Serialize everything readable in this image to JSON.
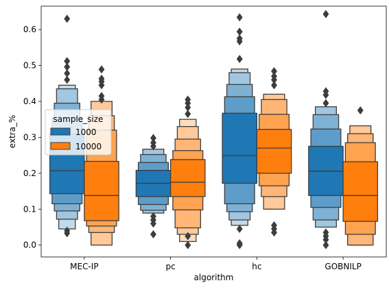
{
  "chart_data": {
    "type": "boxenplot",
    "xlabel": "algorithm",
    "ylabel": "extra_%",
    "categories": [
      "MEC-IP",
      "pc",
      "hc",
      "GOBNILP"
    ],
    "ylim": [
      -0.033,
      0.665
    ],
    "yticks": [
      0.0,
      0.1,
      0.2,
      0.3,
      0.4,
      0.5,
      0.6
    ],
    "ytick_labels": [
      "0.0",
      "0.1",
      "0.2",
      "0.3",
      "0.4",
      "0.5",
      "0.6"
    ],
    "grid": false,
    "legend": {
      "title": "sample_size",
      "placement": "center-left"
    },
    "series": [
      {
        "name": "1000",
        "color": "#1f77b4",
        "groups": [
          {
            "category": "MEC-IP",
            "median": 0.207,
            "boxes": [
              [
                0.143,
                0.31
              ],
              [
                0.115,
                0.355
              ],
              [
                0.095,
                0.395
              ],
              [
                0.072,
                0.435
              ],
              [
                0.045,
                0.445
              ]
            ],
            "outliers": [
              0.04,
              0.033,
              0.46,
              0.478,
              0.496,
              0.512,
              0.63
            ]
          },
          {
            "category": "pc",
            "median": 0.172,
            "boxes": [
              [
                0.135,
                0.208
              ],
              [
                0.113,
                0.23
              ],
              [
                0.097,
                0.252
              ],
              [
                0.089,
                0.267
              ]
            ],
            "outliers": [
              0.08,
              0.07,
              0.06,
              0.03,
              0.275,
              0.285,
              0.298
            ]
          },
          {
            "category": "hc",
            "median": 0.249,
            "boxes": [
              [
                0.172,
                0.367
              ],
              [
                0.115,
                0.413
              ],
              [
                0.093,
                0.447
              ],
              [
                0.07,
                0.48
              ],
              [
                0.055,
                0.49
              ]
            ],
            "outliers": [
              0.045,
              0.005,
              0.0,
              0.518,
              0.567,
              0.575,
              0.594,
              0.634
            ]
          },
          {
            "category": "GOBNILP",
            "median": 0.206,
            "boxes": [
              [
                0.138,
                0.275
              ],
              [
                0.105,
                0.323
              ],
              [
                0.07,
                0.363
              ],
              [
                0.05,
                0.385
              ]
            ],
            "outliers": [
              0.035,
              0.025,
              0.015,
              0.0,
              0.395,
              0.418,
              0.428,
              0.643
            ]
          }
        ]
      },
      {
        "name": "10000",
        "color": "#ff7f0e",
        "groups": [
          {
            "category": "MEC-IP",
            "median": 0.138,
            "boxes": [
              [
                0.068,
                0.233
              ],
              [
                0.053,
                0.32
              ],
              [
                0.035,
                0.36
              ],
              [
                0.0,
                0.4
              ]
            ],
            "outliers": [
              0.405,
              0.415,
              0.445,
              0.455,
              0.463,
              0.489
            ]
          },
          {
            "category": "pc",
            "median": 0.175,
            "boxes": [
              [
                0.135,
                0.238
              ],
              [
                0.098,
                0.263
              ],
              [
                0.048,
                0.295
              ],
              [
                0.03,
                0.33
              ],
              [
                0.01,
                0.35
              ]
            ],
            "outliers": [
              0.025,
              0.0,
              0.365,
              0.383,
              0.395,
              0.405
            ]
          },
          {
            "category": "hc",
            "median": 0.27,
            "boxes": [
              [
                0.2,
                0.322
              ],
              [
                0.165,
                0.364
              ],
              [
                0.135,
                0.405
              ],
              [
                0.1,
                0.42
              ]
            ],
            "outliers": [
              0.055,
              0.045,
              0.035,
              0.445,
              0.46,
              0.47,
              0.484
            ]
          },
          {
            "category": "GOBNILP",
            "median": 0.138,
            "boxes": [
              [
                0.066,
                0.232
              ],
              [
                0.03,
                0.285
              ],
              [
                0.0,
                0.31
              ],
              [
                0.0,
                0.332
              ]
            ],
            "outliers": [
              0.375
            ]
          }
        ]
      }
    ]
  }
}
